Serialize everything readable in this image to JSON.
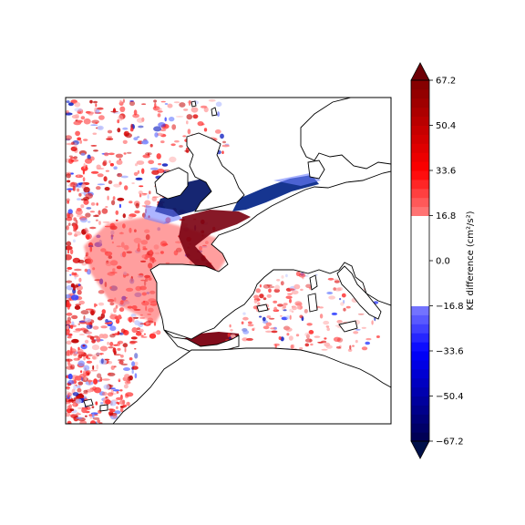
{
  "colorbar": {
    "label": "KE difference (cm²/s²)",
    "ticks": [
      "67.2",
      "50.4",
      "33.6",
      "16.8",
      "0.0",
      "−16.8",
      "−33.6",
      "−50.4",
      "−67.2"
    ],
    "tick_values": [
      67.2,
      50.4,
      33.6,
      16.8,
      0.0,
      -16.8,
      -33.6,
      -50.4,
      -67.2
    ],
    "range": [
      -67.2,
      67.2
    ],
    "extend": "both",
    "colormap": "seismic",
    "colors": {
      "max": "#6e0006",
      "high": "#c81010",
      "mid_high": "#ff3030",
      "low_pos": "#ffd0d0",
      "zero": "#ffffff",
      "low_neg": "#d6d6ff",
      "mid_low": "#3040ff",
      "low": "#0010c0",
      "min": "#00104a"
    }
  },
  "map": {
    "region": "North-East Atlantic and Mediterranean",
    "colors": {
      "coastline": "#000000",
      "positive": "#e41a1c",
      "negative": "#1f3ad0",
      "deep_negative": "#0a1a6a",
      "deep_positive": "#7a0010"
    }
  }
}
